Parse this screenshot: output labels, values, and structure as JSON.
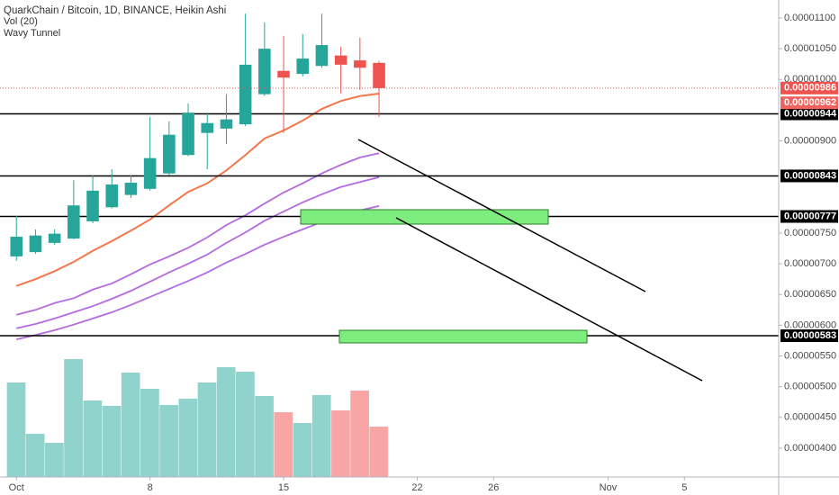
{
  "chart_data": {
    "type": "candlestick",
    "title": "QuarkChain / Bitcoin, 1D, BINANCE, Heikin Ashi",
    "indicators": [
      "Vol (20)",
      "Wavy Tunnel"
    ],
    "x": [
      1,
      2,
      3,
      4,
      5,
      6,
      7,
      8,
      9,
      10,
      11,
      12,
      13,
      14,
      15,
      16,
      17,
      18,
      19,
      20
    ],
    "open": [
      7.12e-06,
      7.19e-06,
      7.34e-06,
      7.41e-06,
      7.69e-06,
      7.92e-06,
      8.12e-06,
      8.22e-06,
      8.47e-06,
      8.77e-06,
      9.13e-06,
      9.2e-06,
      9.27e-06,
      9.76e-06,
      1.014e-05,
      1.009e-05,
      1.022e-05,
      1.039e-05,
      1.031e-05,
      1.027e-05
    ],
    "high": [
      7.78e-06,
      7.56e-06,
      7.56e-06,
      8.36e-06,
      8.44e-06,
      8.54e-06,
      8.44e-06,
      9.39e-06,
      9.32e-06,
      9.61e-06,
      9.46e-06,
      9.76e-06,
      1.107e-05,
      1.093e-05,
      1.071e-05,
      1.074e-05,
      1.107e-05,
      1.053e-05,
      1.068e-05,
      1.03e-05
    ],
    "low": [
      7.05e-06,
      7.16e-06,
      7.31e-06,
      7.4e-06,
      7.66e-06,
      7.9e-06,
      8.07e-06,
      8.19e-06,
      8.44e-06,
      8.75e-06,
      8.54e-06,
      8.95e-06,
      9.24e-06,
      9.73e-06,
      9.13e-06,
      1.005e-05,
      1.019e-05,
      9.77e-06,
      9.83e-06,
      9.39e-06
    ],
    "close": [
      7.44e-06,
      7.46e-06,
      7.49e-06,
      7.95e-06,
      8.19e-06,
      8.29e-06,
      8.32e-06,
      8.72e-06,
      9.1e-06,
      9.46e-06,
      9.29e-06,
      9.35e-06,
      1.024e-05,
      1.05e-05,
      1.003e-05,
      1.034e-05,
      1.056e-05,
      1.024e-05,
      1.019e-05,
      9.86e-06
    ],
    "volume": [
      105,
      48,
      38,
      131,
      85,
      79,
      116,
      98,
      80,
      87,
      105,
      122,
      117,
      90,
      72,
      60,
      91,
      74,
      96,
      56
    ],
    "up_color": "#26a69a",
    "down_color": "#ef5350",
    "volume_up_color": "#8fd3cc",
    "volume_down_color": "#f7a6a5",
    "series": [
      {
        "color": "#f4774c",
        "values": [
          6.64e-06,
          6.75e-06,
          6.88e-06,
          7.03e-06,
          7.21e-06,
          7.37e-06,
          7.54e-06,
          7.72e-06,
          7.95e-06,
          8.17e-06,
          8.31e-06,
          8.52e-06,
          8.77e-06,
          9.04e-06,
          9.17e-06,
          9.33e-06,
          9.52e-06,
          9.65e-06,
          9.73e-06,
          9.77e-06
        ]
      },
      {
        "color": "#b36ae2",
        "values": [
          6.17e-06,
          6.25e-06,
          6.36e-06,
          6.44e-06,
          6.58e-06,
          6.68e-06,
          6.83e-06,
          6.99e-06,
          7.12e-06,
          7.26e-06,
          7.43e-06,
          7.63e-06,
          7.79e-06,
          7.98e-06,
          8.16e-06,
          8.31e-06,
          8.47e-06,
          8.61e-06,
          8.73e-06,
          8.8e-06
        ]
      },
      {
        "color": "#b36ae2",
        "values": [
          5.95e-06,
          6.02e-06,
          6.11e-06,
          6.21e-06,
          6.31e-06,
          6.43e-06,
          6.56e-06,
          6.71e-06,
          6.86e-06,
          7e-06,
          7.15e-06,
          7.34e-06,
          7.51e-06,
          7.7e-06,
          7.85e-06,
          8e-06,
          8.13e-06,
          8.25e-06,
          8.33e-06,
          8.41e-06
        ]
      },
      {
        "color": "#b36ae2",
        "values": [
          5.77e-06,
          5.84e-06,
          5.92e-06,
          6.01e-06,
          6.11e-06,
          6.21e-06,
          6.33e-06,
          6.46e-06,
          6.59e-06,
          6.72e-06,
          6.86e-06,
          7.02e-06,
          7.16e-06,
          7.31e-06,
          7.44e-06,
          7.56e-06,
          7.68e-06,
          7.78e-06,
          7.87e-06,
          7.94e-06
        ]
      }
    ],
    "levels": [
      {
        "value": 9.44e-06,
        "label": "0.00000944"
      },
      {
        "value": 8.43e-06,
        "label": "0.00000843"
      },
      {
        "value": 7.77e-06,
        "label": "0.00000777"
      },
      {
        "value": 5.83e-06,
        "label": "0.00000583"
      }
    ],
    "price_labels": [
      {
        "value": 9.86e-06,
        "label": "0.00000986",
        "color": "#ef5350"
      },
      {
        "value": 9.62e-06,
        "label": "0.00000962",
        "color": "#f2625e"
      }
    ],
    "xlim": [
      0.14,
      40.94
    ],
    "xticks": [
      {
        "value": 1,
        "label": "Oct"
      },
      8,
      15,
      22,
      26,
      {
        "value": 32,
        "label": "Nov"
      },
      5
    ],
    "ylim": [
      3.53e-06,
      1.1293e-05
    ],
    "yticks": [
      {
        "value": 1.1e-05,
        "label": "0.00001100"
      },
      {
        "value": 1.05e-05,
        "label": "0.00001050"
      },
      {
        "value": 1e-05,
        "label": "0.00001000"
      },
      {
        "value": 9e-06,
        "label": "0.00000900"
      },
      {
        "value": 7.5e-06,
        "label": "0.00000750"
      },
      {
        "value": 7e-06,
        "label": "0.00000700"
      },
      {
        "value": 6.5e-06,
        "label": "0.00000650"
      },
      {
        "value": 6e-06,
        "label": "0.00000600"
      },
      {
        "value": 5.5e-06,
        "label": "0.00000550"
      },
      {
        "value": 5e-06,
        "label": "0.00000500"
      },
      {
        "value": 4.5e-06,
        "label": "0.00000450"
      },
      {
        "value": 4e-06,
        "label": "0.00000400"
      }
    ]
  }
}
